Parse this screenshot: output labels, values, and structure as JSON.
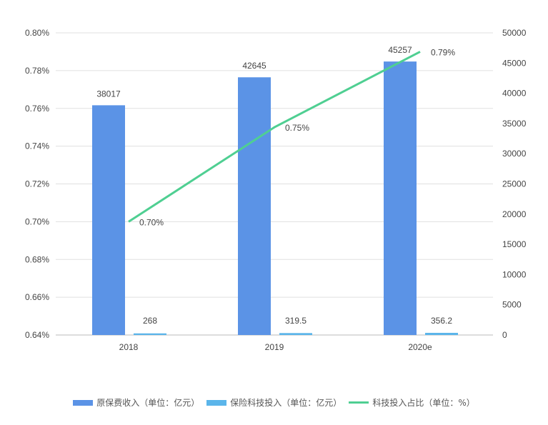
{
  "chart_data": {
    "type": "bar+line",
    "categories": [
      "2018",
      "2019",
      "2020e"
    ],
    "left_axis": {
      "min": 0.64,
      "max": 0.8,
      "step": 0.02,
      "ticks": [
        "0.64%",
        "0.66%",
        "0.68%",
        "0.70%",
        "0.72%",
        "0.74%",
        "0.76%",
        "0.78%",
        "0.80%"
      ]
    },
    "right_axis": {
      "min": 0,
      "max": 50000,
      "step": 5000,
      "ticks": [
        "0",
        "5000",
        "10000",
        "15000",
        "20000",
        "25000",
        "30000",
        "35000",
        "40000",
        "45000",
        "50000"
      ]
    },
    "grid": true,
    "legend_position": "bottom",
    "series": [
      {
        "name": "原保费收入（单位：亿元）",
        "type": "bar",
        "axis": "right",
        "color": "#5b93e6",
        "values": [
          38017,
          42645,
          45257
        ],
        "labels": [
          "38017",
          "42645",
          "45257"
        ]
      },
      {
        "name": "保险科技投入（单位：亿元）",
        "type": "bar",
        "axis": "right",
        "color": "#5bb5ea",
        "values": [
          268,
          319.5,
          356.2
        ],
        "labels": [
          "268",
          "319.5",
          "356.2"
        ]
      },
      {
        "name": "科技投入占比（单位：%）",
        "type": "line",
        "axis": "left",
        "color": "#4fcf92",
        "values": [
          0.7,
          0.75,
          0.79
        ],
        "labels": [
          "0.70%",
          "0.75%",
          "0.79%"
        ]
      }
    ]
  }
}
